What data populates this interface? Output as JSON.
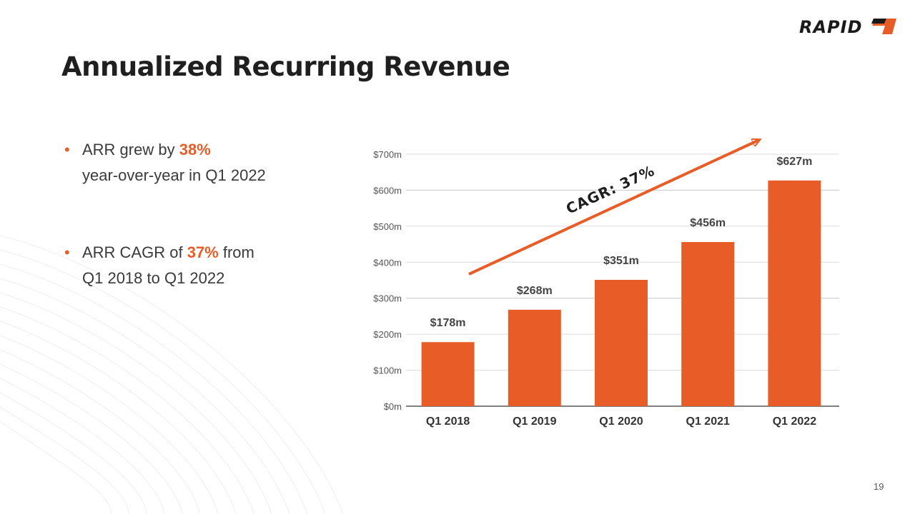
{
  "logo": {
    "text": "RAPID"
  },
  "title": "Annualized Recurring Revenue",
  "bullets": [
    {
      "pre": "ARR grew by ",
      "highlight": "38%",
      "post": "",
      "line2": "year-over-year in Q1 2022"
    },
    {
      "pre": "ARR CAGR of ",
      "highlight": "37%",
      "post": " from",
      "line2": "Q1 2018 to Q1 2022"
    }
  ],
  "colors": {
    "accent": "#e85d27",
    "gridline": "#dcdcdc",
    "axis": "#555555"
  },
  "chart_data": {
    "type": "bar",
    "categories": [
      "Q1 2018",
      "Q1 2019",
      "Q1 2020",
      "Q1 2021",
      "Q1 2022"
    ],
    "values": [
      178,
      268,
      351,
      456,
      627
    ],
    "data_labels": [
      "$178m",
      "$268m",
      "$351m",
      "$456m",
      "$627m"
    ],
    "y_ticks": [
      "$0m",
      "$100m",
      "$200m",
      "$300m",
      "$400m",
      "$500m",
      "$600m",
      "$700m"
    ],
    "ylim": [
      0,
      700
    ],
    "grid": true,
    "annotation": "CAGR: 37%"
  },
  "page_number": "19"
}
